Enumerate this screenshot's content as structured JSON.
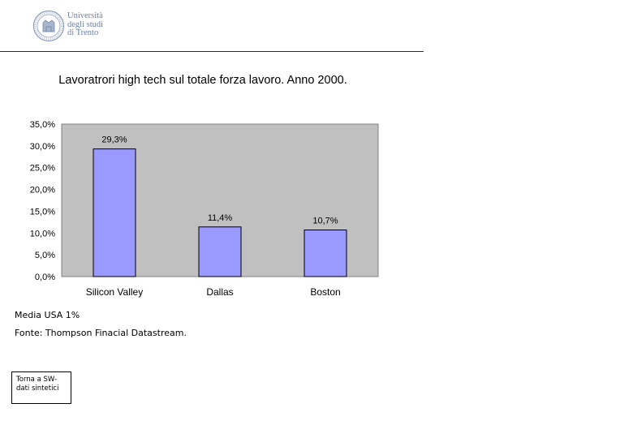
{
  "header": {
    "logo_text_lines": [
      "Università",
      "degli studi",
      "di Trento"
    ]
  },
  "chart_data": {
    "type": "bar",
    "title": "Lavoratrori high tech sul totale forza lavoro. Anno 2000.",
    "categories": [
      "Silicon Valley",
      "Dallas",
      "Boston"
    ],
    "values": [
      29.3,
      11.4,
      10.7
    ],
    "data_labels": [
      "29,3%",
      "11,4%",
      "10,7%"
    ],
    "ylim": [
      0,
      35
    ],
    "yticks": [
      {
        "value": 35,
        "label": "35,0%"
      },
      {
        "value": 30,
        "label": "30,0%"
      },
      {
        "value": 25,
        "label": "25,0%"
      },
      {
        "value": 20,
        "label": "20,0%"
      },
      {
        "value": 15,
        "label": "15,0%"
      },
      {
        "value": 10,
        "label": "10,0%"
      },
      {
        "value": 5,
        "label": "5,0%"
      },
      {
        "value": 0,
        "label": "0,0%"
      }
    ],
    "xlabel": "",
    "ylabel": "",
    "grid": false,
    "plot_background": "#c0c0c0",
    "bar_color": "#9999ff",
    "bar_outline": "#000000"
  },
  "notes": {
    "media": "Media USA 1%",
    "fonte": "Fonte: Thompson Finacial Datastream."
  },
  "back_button": {
    "label": "Torna a SW-dati sintetici"
  }
}
